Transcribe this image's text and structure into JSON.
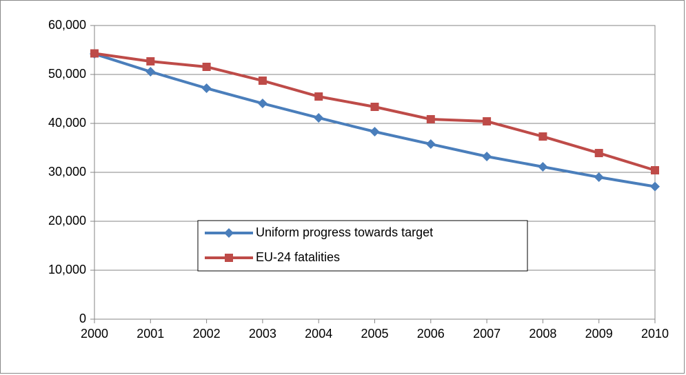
{
  "chart_data": {
    "type": "line",
    "x": [
      2000,
      2001,
      2002,
      2003,
      2004,
      2005,
      2006,
      2007,
      2008,
      2009,
      2010
    ],
    "xlim": [
      2000,
      2010
    ],
    "xticks": [
      2000,
      2001,
      2002,
      2003,
      2004,
      2005,
      2006,
      2007,
      2008,
      2009,
      2010
    ],
    "ylim": [
      0,
      60000
    ],
    "yticks": [
      0,
      {
        "value": 10000,
        "label": "10,000"
      },
      {
        "value": 20000,
        "label": "20,000"
      },
      {
        "value": 30000,
        "label": "30,000"
      },
      {
        "value": 40000,
        "label": "40,000"
      },
      {
        "value": 50000,
        "label": "50,000"
      },
      {
        "value": 60000,
        "label": "60,000"
      }
    ],
    "grid": true,
    "series": [
      {
        "name": "Uniform progress towards target",
        "color": "#4a7ebb",
        "marker": "diamond",
        "values": [
          54200,
          50560,
          47180,
          44080,
          41130,
          38310,
          35770,
          33240,
          31130,
          29010,
          27100
        ]
      },
      {
        "name": "EU-24 fatalities",
        "color": "#be4b48",
        "marker": "square",
        "values": [
          54300,
          52680,
          51550,
          48730,
          45490,
          43380,
          40850,
          40420,
          37320,
          33940,
          30420
        ]
      }
    ]
  }
}
